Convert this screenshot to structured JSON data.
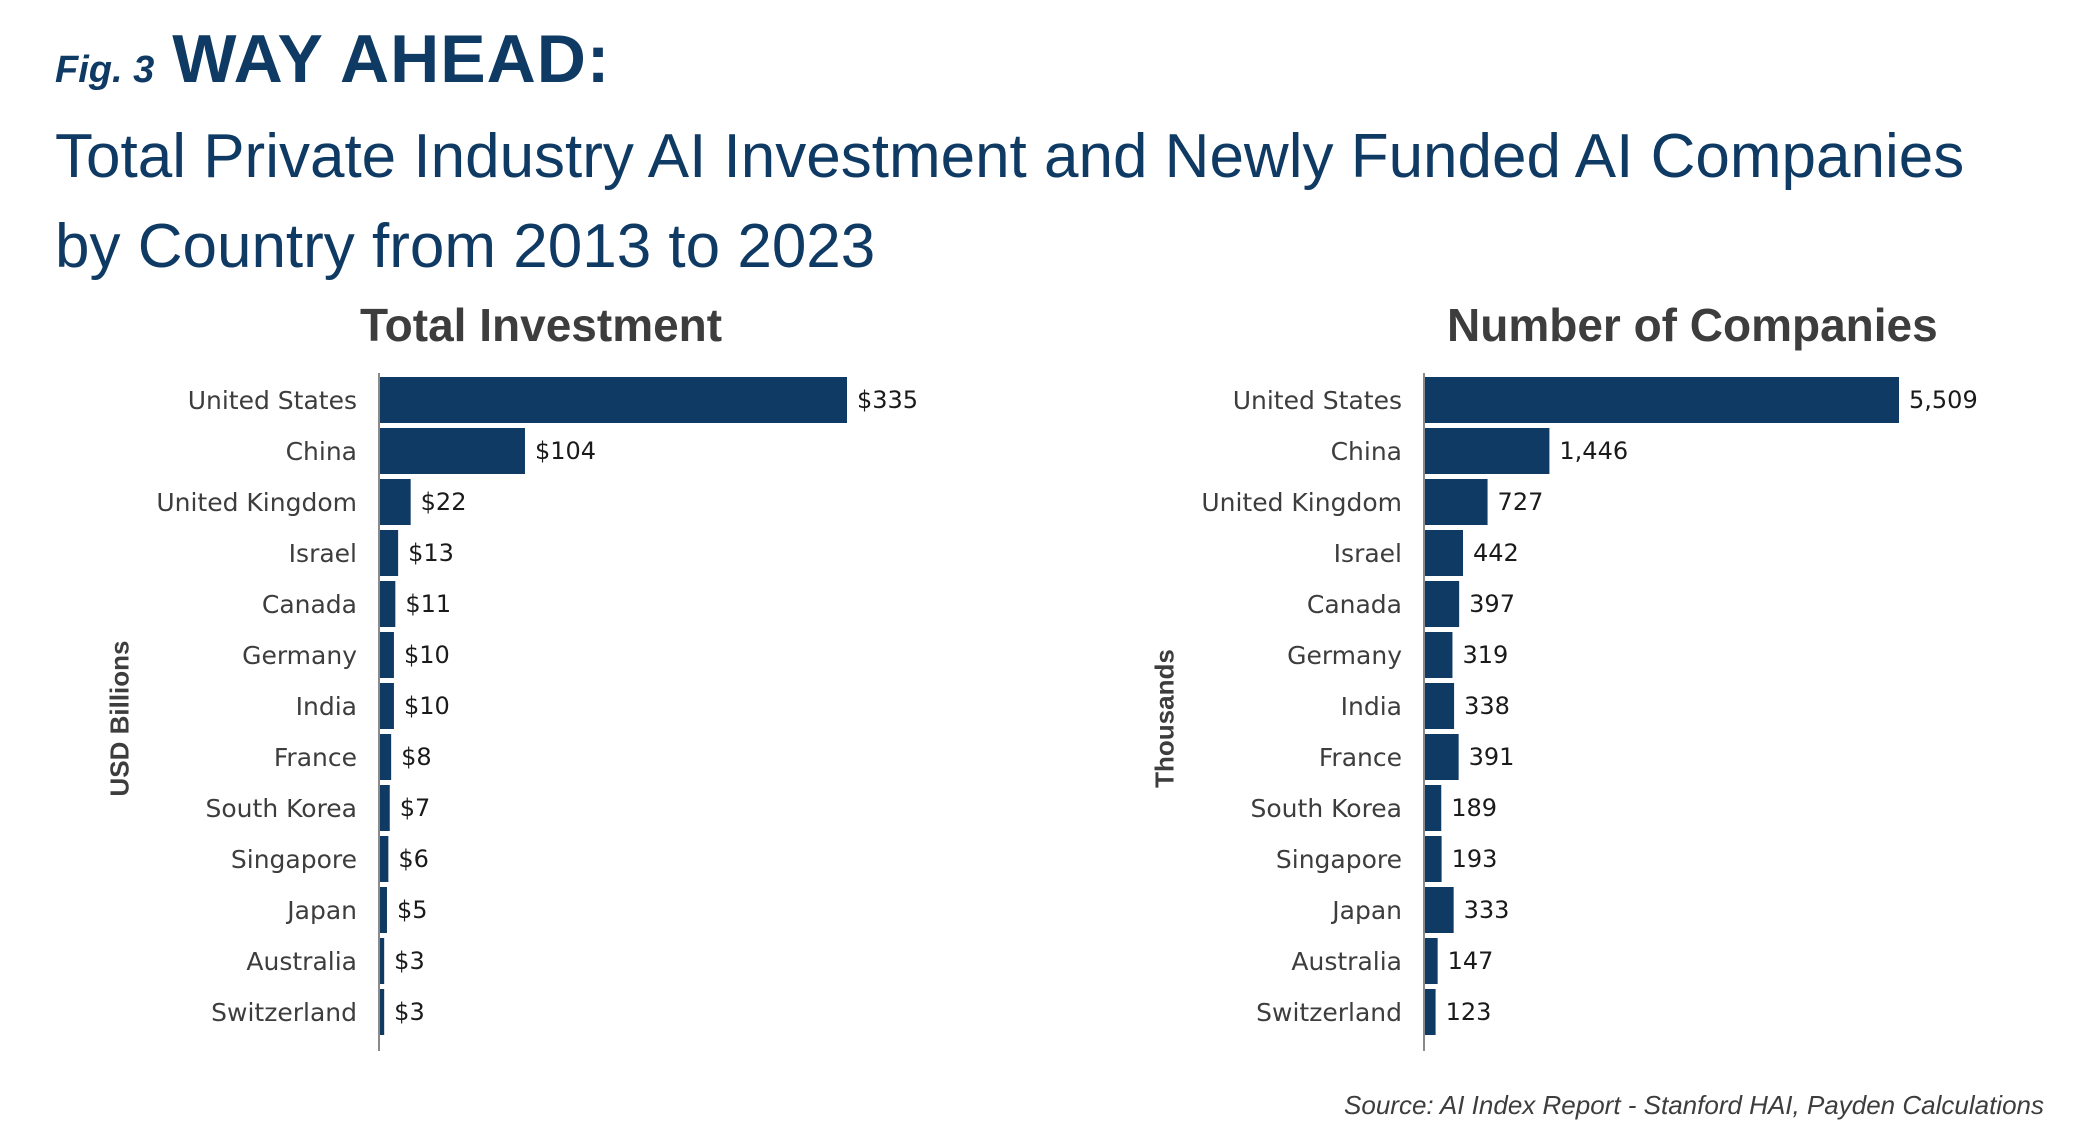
{
  "header": {
    "fig_label": "Fig. 3",
    "fig_title": "WAY AHEAD:",
    "subtitle": "Total Private Industry AI Investment and Newly Funded AI Companies by Country from 2013 to 2023"
  },
  "source": "Source:  AI Index Report - Stanford HAI, Payden Calculations",
  "colors": {
    "bar": "#0f3a64",
    "axis": "#8a8a8a",
    "text": "#3d3d3d"
  },
  "chart_data": [
    {
      "type": "bar",
      "orientation": "horizontal",
      "title": "Total Investment",
      "ylabel": "USD Billions",
      "categories": [
        "United States",
        "China",
        "United Kingdom",
        "Israel",
        "Canada",
        "Germany",
        "India",
        "France",
        "South Korea",
        "Singapore",
        "Japan",
        "Australia",
        "Switzerland"
      ],
      "values": [
        335,
        104,
        22,
        13,
        11,
        10,
        10,
        8,
        7,
        6,
        5,
        3,
        3
      ],
      "data_labels": [
        "$335",
        "$104",
        "$22",
        "$13",
        "$11",
        "$10",
        "$10",
        "$8",
        "$7",
        "$6",
        "$5",
        "$3",
        "$3"
      ],
      "xlim": [
        0,
        335
      ],
      "grid": false
    },
    {
      "type": "bar",
      "orientation": "horizontal",
      "title": "Number of Companies",
      "ylabel": "Thousands",
      "categories": [
        "United States",
        "China",
        "United Kingdom",
        "Israel",
        "Canada",
        "Germany",
        "India",
        "France",
        "South Korea",
        "Singapore",
        "Japan",
        "Australia",
        "Switzerland"
      ],
      "values": [
        5509,
        1446,
        727,
        442,
        397,
        319,
        338,
        391,
        189,
        193,
        333,
        147,
        123
      ],
      "data_labels": [
        "5,509",
        "1,446",
        "727",
        "442",
        "397",
        "319",
        "338",
        "391",
        "189",
        "193",
        "333",
        "147",
        "123"
      ],
      "xlim": [
        0,
        5509
      ],
      "grid": false
    }
  ]
}
